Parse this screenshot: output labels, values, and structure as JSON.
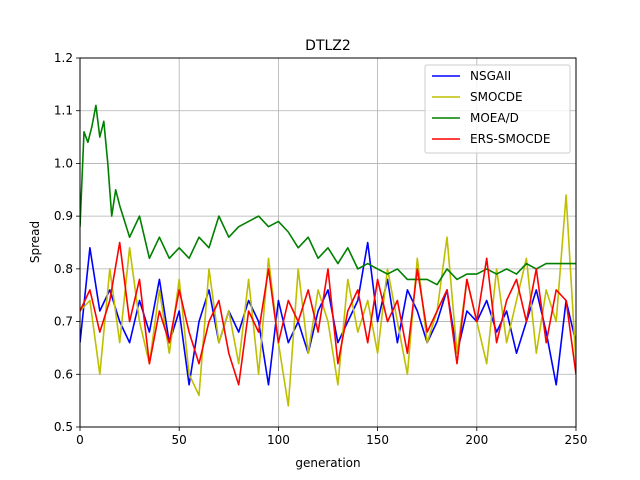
{
  "chart_data": {
    "type": "line",
    "title": "DTLZ2",
    "xlabel": "generation",
    "ylabel": "Spread",
    "xlim": [
      0,
      250
    ],
    "ylim": [
      0.5,
      1.2
    ],
    "xticks": [
      0,
      50,
      100,
      150,
      200,
      250
    ],
    "yticks": [
      0.5,
      0.6,
      0.7,
      0.8,
      0.9,
      1.0,
      1.1,
      1.2
    ],
    "xtick_labels": [
      "0",
      "50",
      "100",
      "150",
      "200",
      "250"
    ],
    "ytick_labels": [
      "0.5",
      "0.6",
      "0.7",
      "0.8",
      "0.9",
      "1.0",
      "1.1",
      "1.2"
    ],
    "grid": true,
    "legend_position": "top-right",
    "series": [
      {
        "name": "NSGAII",
        "color": "#0000ff",
        "x": [
          0,
          5,
          10,
          15,
          20,
          25,
          30,
          35,
          40,
          45,
          50,
          55,
          60,
          65,
          70,
          75,
          80,
          85,
          90,
          95,
          100,
          105,
          110,
          115,
          120,
          125,
          130,
          135,
          140,
          145,
          150,
          155,
          160,
          165,
          170,
          175,
          180,
          185,
          190,
          195,
          200,
          205,
          210,
          215,
          220,
          225,
          230,
          235,
          240,
          245,
          250
        ],
        "y": [
          0.66,
          0.84,
          0.72,
          0.76,
          0.7,
          0.66,
          0.74,
          0.68,
          0.78,
          0.66,
          0.72,
          0.58,
          0.7,
          0.76,
          0.66,
          0.72,
          0.68,
          0.74,
          0.7,
          0.58,
          0.74,
          0.66,
          0.7,
          0.64,
          0.72,
          0.76,
          0.66,
          0.7,
          0.74,
          0.85,
          0.7,
          0.78,
          0.66,
          0.76,
          0.72,
          0.66,
          0.7,
          0.76,
          0.64,
          0.72,
          0.7,
          0.74,
          0.68,
          0.72,
          0.64,
          0.7,
          0.76,
          0.68,
          0.58,
          0.74,
          0.66
        ]
      },
      {
        "name": "SMOCDE",
        "color": "#bfbf00",
        "x": [
          0,
          5,
          10,
          15,
          20,
          25,
          30,
          35,
          40,
          45,
          50,
          55,
          60,
          65,
          70,
          75,
          80,
          85,
          90,
          95,
          100,
          105,
          110,
          115,
          120,
          125,
          130,
          135,
          140,
          145,
          150,
          155,
          160,
          165,
          170,
          175,
          180,
          185,
          190,
          195,
          200,
          205,
          210,
          215,
          220,
          225,
          230,
          235,
          240,
          245,
          250
        ],
        "y": [
          0.72,
          0.74,
          0.6,
          0.8,
          0.66,
          0.84,
          0.7,
          0.62,
          0.76,
          0.64,
          0.78,
          0.6,
          0.56,
          0.8,
          0.66,
          0.72,
          0.62,
          0.78,
          0.6,
          0.82,
          0.66,
          0.54,
          0.8,
          0.64,
          0.76,
          0.7,
          0.58,
          0.78,
          0.68,
          0.74,
          0.64,
          0.8,
          0.7,
          0.6,
          0.82,
          0.66,
          0.72,
          0.86,
          0.64,
          0.78,
          0.7,
          0.62,
          0.8,
          0.66,
          0.74,
          0.82,
          0.64,
          0.76,
          0.7,
          0.94,
          0.62
        ]
      },
      {
        "name": "MOEA/D",
        "color": "#008000",
        "x": [
          0,
          2,
          4,
          6,
          8,
          10,
          12,
          14,
          16,
          18,
          20,
          25,
          30,
          35,
          40,
          45,
          50,
          55,
          60,
          65,
          70,
          75,
          80,
          85,
          90,
          95,
          100,
          105,
          110,
          115,
          120,
          125,
          130,
          135,
          140,
          145,
          150,
          155,
          160,
          165,
          170,
          175,
          180,
          185,
          190,
          195,
          200,
          205,
          210,
          215,
          220,
          225,
          230,
          235,
          240,
          245,
          250
        ],
        "y": [
          0.88,
          1.06,
          1.04,
          1.07,
          1.11,
          1.05,
          1.08,
          1.0,
          0.9,
          0.95,
          0.92,
          0.86,
          0.9,
          0.82,
          0.86,
          0.82,
          0.84,
          0.82,
          0.86,
          0.84,
          0.9,
          0.86,
          0.88,
          0.89,
          0.9,
          0.88,
          0.89,
          0.87,
          0.84,
          0.86,
          0.82,
          0.84,
          0.81,
          0.84,
          0.8,
          0.81,
          0.8,
          0.79,
          0.8,
          0.78,
          0.78,
          0.78,
          0.77,
          0.8,
          0.78,
          0.79,
          0.79,
          0.8,
          0.79,
          0.8,
          0.79,
          0.81,
          0.8,
          0.81,
          0.81,
          0.81,
          0.81
        ]
      },
      {
        "name": "ERS-SMOCDE",
        "color": "#ff0000",
        "x": [
          0,
          5,
          10,
          15,
          20,
          25,
          30,
          35,
          40,
          45,
          50,
          55,
          60,
          65,
          70,
          75,
          80,
          85,
          90,
          95,
          100,
          105,
          110,
          115,
          120,
          125,
          130,
          135,
          140,
          145,
          150,
          155,
          160,
          165,
          170,
          175,
          180,
          185,
          190,
          195,
          200,
          205,
          210,
          215,
          220,
          225,
          230,
          235,
          240,
          245,
          250
        ],
        "y": [
          0.72,
          0.76,
          0.68,
          0.74,
          0.85,
          0.7,
          0.78,
          0.62,
          0.72,
          0.66,
          0.76,
          0.68,
          0.62,
          0.7,
          0.74,
          0.64,
          0.58,
          0.72,
          0.68,
          0.8,
          0.66,
          0.74,
          0.7,
          0.76,
          0.68,
          0.8,
          0.62,
          0.72,
          0.76,
          0.66,
          0.78,
          0.7,
          0.74,
          0.64,
          0.8,
          0.68,
          0.72,
          0.76,
          0.62,
          0.78,
          0.7,
          0.82,
          0.66,
          0.74,
          0.78,
          0.7,
          0.8,
          0.66,
          0.76,
          0.74,
          0.6
        ]
      }
    ]
  }
}
